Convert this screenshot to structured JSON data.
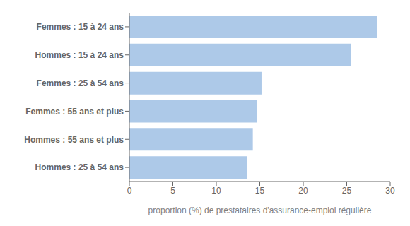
{
  "chart_data": {
    "type": "bar",
    "orientation": "horizontal",
    "categories": [
      "Hommes : 25 à 54 ans",
      "Hommes : 55 ans et plus",
      "Femmes : 55 ans et plus",
      "Femmes : 25 à 54 ans",
      "Hommes : 15 à 24 ans",
      "Femmes : 15 à 24 ans"
    ],
    "values": [
      13.5,
      14.2,
      14.7,
      15.2,
      25.5,
      28.5
    ],
    "color": "#adc9e8",
    "xlabel": "proportion (%) de prestataires d'assurance-emploi régulière",
    "xlim": [
      0,
      30
    ],
    "xticks": [
      0,
      5,
      10,
      15,
      20,
      25,
      30
    ],
    "grid": false
  }
}
